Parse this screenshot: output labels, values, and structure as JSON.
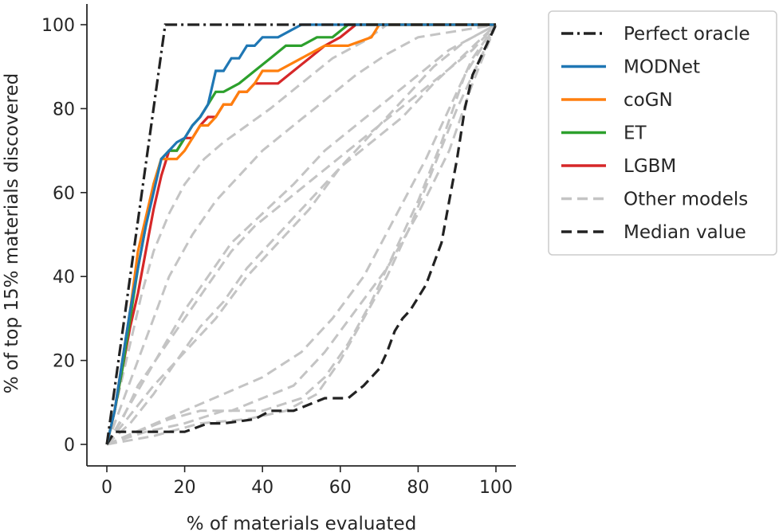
{
  "chart_data": {
    "type": "line",
    "xlabel": "% of materials evaluated",
    "ylabel": "% of top 15% materials discovered",
    "xlim": [
      0,
      100
    ],
    "ylim": [
      0,
      100
    ],
    "xticks": [
      0,
      20,
      40,
      60,
      80,
      100
    ],
    "yticks": [
      0,
      20,
      40,
      60,
      80,
      100
    ],
    "grid": false,
    "legend_position": "upper right, outside plot",
    "series": [
      {
        "name": "Perfect oracle",
        "color": "#222222",
        "style": "dashdot",
        "x": [
          0,
          15,
          100
        ],
        "y": [
          0,
          100,
          100
        ]
      },
      {
        "name": "MODNet",
        "color": "#1f77b4",
        "style": "solid",
        "x": [
          0,
          2,
          4,
          6,
          8,
          10,
          12,
          14,
          16,
          18,
          20,
          22,
          24,
          26,
          28,
          30,
          32,
          34,
          36,
          38,
          40,
          44,
          50,
          100
        ],
        "y": [
          0,
          8,
          20,
          32,
          42,
          52,
          60,
          68,
          70,
          72,
          73,
          76,
          78,
          81,
          89,
          89,
          92,
          92,
          95,
          95,
          97,
          97,
          100,
          100
        ]
      },
      {
        "name": "coGN",
        "color": "#ff7f0e",
        "style": "solid",
        "x": [
          0,
          2,
          4,
          6,
          8,
          10,
          12,
          14,
          16,
          18,
          20,
          22,
          24,
          26,
          28,
          30,
          32,
          34,
          36,
          38,
          40,
          44,
          50,
          56,
          62,
          68,
          70,
          100
        ],
        "y": [
          0,
          8,
          20,
          32,
          46,
          54,
          62,
          68,
          68,
          68,
          70,
          73,
          76,
          76,
          78,
          81,
          81,
          84,
          84,
          86,
          89,
          89,
          92,
          95,
          95,
          97,
          100,
          100
        ]
      },
      {
        "name": "ET",
        "color": "#2ca02c",
        "style": "solid",
        "x": [
          0,
          2,
          4,
          6,
          8,
          10,
          12,
          14,
          16,
          18,
          20,
          22,
          24,
          26,
          28,
          30,
          34,
          38,
          42,
          46,
          50,
          54,
          58,
          62,
          66,
          100
        ],
        "y": [
          0,
          8,
          18,
          30,
          42,
          52,
          62,
          68,
          70,
          70,
          73,
          76,
          78,
          81,
          84,
          84,
          86,
          89,
          92,
          95,
          95,
          97,
          97,
          100,
          100,
          100
        ]
      },
      {
        "name": "LGBM",
        "color": "#d62728",
        "style": "solid",
        "x": [
          0,
          2,
          4,
          6,
          8,
          10,
          12,
          14,
          16,
          18,
          20,
          22,
          24,
          26,
          28,
          30,
          32,
          34,
          36,
          38,
          40,
          44,
          48,
          52,
          56,
          60,
          64,
          100
        ],
        "y": [
          0,
          8,
          18,
          28,
          36,
          46,
          56,
          64,
          70,
          70,
          73,
          73,
          76,
          78,
          78,
          81,
          81,
          84,
          84,
          86,
          86,
          86,
          89,
          92,
          95,
          97,
          100,
          100
        ]
      },
      {
        "name": "Other models",
        "color": "#c4c4c4",
        "style": "dashed",
        "lines": [
          {
            "x": [
              0,
              3,
              6,
              9,
              12,
              16,
              20,
              25,
              30,
              36,
              42,
              50,
              58,
              66,
              72,
              100
            ],
            "y": [
              0,
              12,
              24,
              36,
              46,
              55,
              62,
              68,
              72,
              76,
              80,
              86,
              92,
              96,
              100,
              100
            ]
          },
          {
            "x": [
              0,
              4,
              8,
              12,
              16,
              22,
              28,
              34,
              40,
              48,
              56,
              64,
              72,
              80,
              100
            ],
            "y": [
              0,
              10,
              20,
              30,
              40,
              50,
              58,
              64,
              70,
              76,
              82,
              88,
              93,
              97,
              100
            ]
          },
          {
            "x": [
              0,
              5,
              10,
              15,
              20,
              26,
              32,
              40,
              48,
              56,
              64,
              72,
              80,
              88,
              100
            ],
            "y": [
              0,
              8,
              16,
              24,
              32,
              40,
              48,
              55,
              62,
              70,
              76,
              82,
              88,
              94,
              100
            ]
          },
          {
            "x": [
              0,
              4,
              8,
              14,
              20,
              26,
              32,
              38,
              46,
              54,
              62,
              70,
              78,
              86,
              94,
              100
            ],
            "y": [
              0,
              6,
              14,
              22,
              30,
              38,
              46,
              52,
              58,
              64,
              70,
              76,
              82,
              88,
              94,
              100
            ]
          },
          {
            "x": [
              0,
              6,
              12,
              18,
              24,
              30,
              36,
              44,
              52,
              60,
              68,
              76,
              84,
              92,
              100
            ],
            "y": [
              0,
              5,
              12,
              20,
              28,
              34,
              42,
              50,
              58,
              66,
              72,
              78,
              86,
              93,
              100
            ]
          },
          {
            "x": [
              0,
              8,
              16,
              24,
              32,
              40,
              48,
              56,
              64,
              72,
              80,
              88,
              94,
              100
            ],
            "y": [
              0,
              3,
              6,
              8,
              8,
              11,
              14,
              22,
              32,
              42,
              55,
              70,
              86,
              100
            ]
          },
          {
            "x": [
              0,
              10,
              20,
              30,
              40,
              50,
              56,
              62,
              68,
              74,
              80,
              86,
              92,
              100
            ],
            "y": [
              0,
              3,
              5,
              8,
              8,
              11,
              16,
              24,
              34,
              46,
              58,
              72,
              88,
              100
            ]
          },
          {
            "x": [
              0,
              12,
              24,
              36,
              46,
              54,
              60,
              66,
              72,
              78,
              84,
              90,
              96,
              100
            ],
            "y": [
              0,
              2,
              5,
              6,
              8,
              12,
              20,
              30,
              40,
              52,
              66,
              80,
              92,
              100
            ]
          },
          {
            "x": [
              0,
              10,
              20,
              30,
              40,
              50,
              58,
              66,
              74,
              82,
              88,
              94,
              100
            ],
            "y": [
              0,
              4,
              8,
              12,
              16,
              22,
              30,
              40,
              54,
              68,
              80,
              92,
              100
            ]
          },
          {
            "x": [
              0,
              6,
              12,
              20,
              28,
              36,
              44,
              52,
              60,
              68,
              76,
              84,
              92,
              100
            ],
            "y": [
              0,
              7,
              14,
              22,
              30,
              40,
              48,
              56,
              66,
              74,
              82,
              90,
              96,
              100
            ]
          }
        ]
      },
      {
        "name": "Median value",
        "color": "#222222",
        "style": "dashed",
        "x": [
          0,
          2,
          6,
          12,
          20,
          26,
          30,
          38,
          42,
          48,
          56,
          62,
          66,
          70,
          72,
          74,
          76,
          78,
          80,
          82,
          84,
          86,
          88,
          90,
          92,
          94,
          96,
          98,
          100
        ],
        "y": [
          0,
          3,
          3,
          3,
          3,
          5,
          5,
          6,
          8,
          8,
          11,
          11,
          14,
          18,
          22,
          27,
          30,
          32,
          35,
          38,
          43,
          48,
          58,
          68,
          80,
          88,
          92,
          96,
          100
        ]
      }
    ]
  }
}
